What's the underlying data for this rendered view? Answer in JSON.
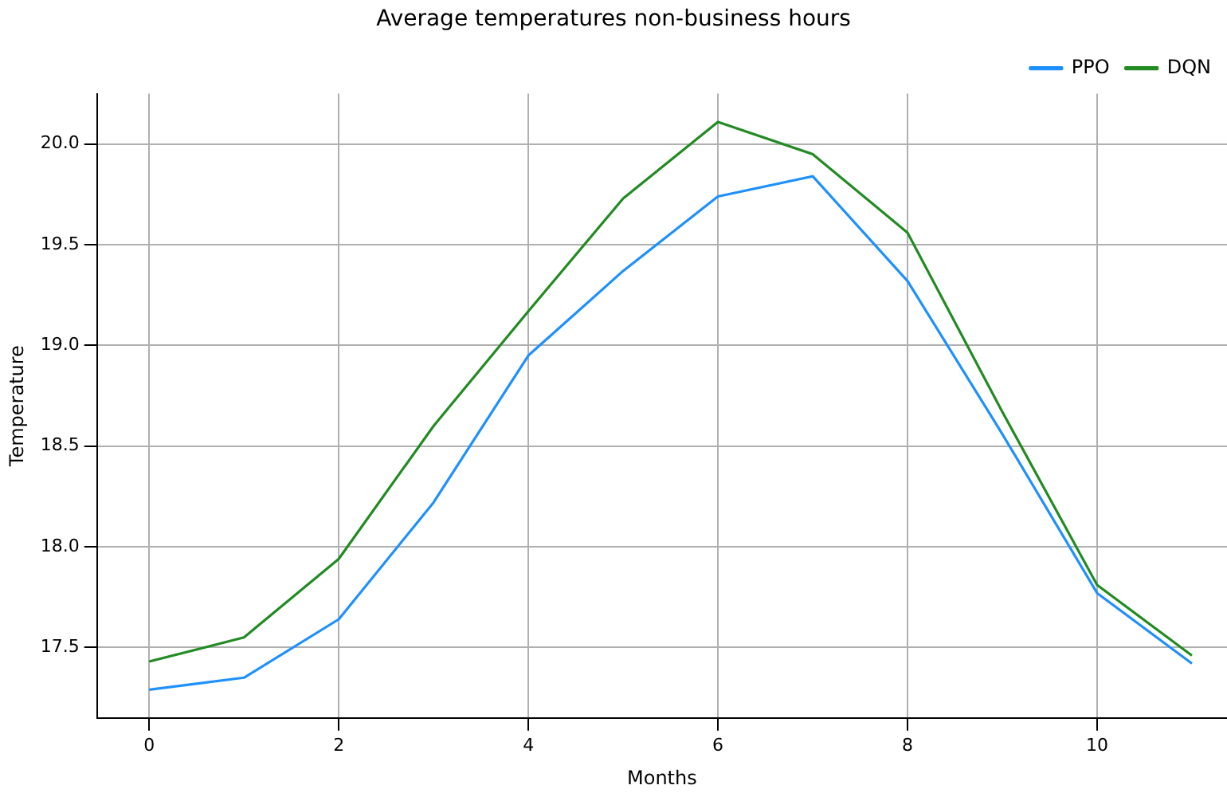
{
  "chart_data": {
    "type": "line",
    "title": "Average temperatures non-business hours",
    "xlabel": "Months",
    "ylabel": "Temperature",
    "x": [
      0,
      1,
      2,
      3,
      4,
      5,
      6,
      7,
      8,
      9,
      10,
      11
    ],
    "series": [
      {
        "name": "PPO",
        "color": "#1e90ff",
        "values": [
          17.29,
          17.35,
          17.64,
          18.22,
          18.95,
          19.37,
          19.74,
          19.84,
          19.32,
          18.56,
          17.77,
          17.42
        ]
      },
      {
        "name": "DQN",
        "color": "#228b22",
        "values": [
          17.43,
          17.55,
          17.94,
          18.6,
          19.17,
          19.73,
          20.11,
          19.95,
          19.56,
          18.67,
          17.81,
          17.46
        ]
      }
    ],
    "xlim": [
      -0.55,
      11.37
    ],
    "xticks": [
      0,
      2,
      4,
      6,
      8,
      10
    ],
    "ylim": [
      17.15,
      20.25
    ],
    "yticks": [
      17.5,
      {
        "value": 18,
        "label": "18.0"
      },
      18.5,
      {
        "value": 19,
        "label": "19.0"
      },
      19.5,
      {
        "value": 20,
        "label": "20.0"
      }
    ],
    "grid": true,
    "legend": "top right",
    "marker": "none",
    "line_style": "solid"
  }
}
